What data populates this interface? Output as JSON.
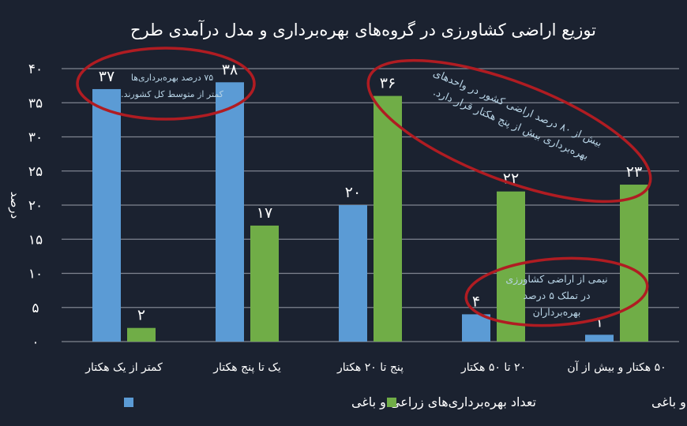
{
  "chart_data": {
    "type": "bar",
    "title": "توزیع اراضی کشاورزی در گروه‌های بهره‌برداری و مدل درآمدی طرح",
    "ylabel": "درصد",
    "xlabel": "",
    "ylim": [
      0,
      40
    ],
    "yticks": [
      0,
      5,
      10,
      15,
      20,
      25,
      30,
      35,
      40
    ],
    "ytick_labels": [
      "۰",
      "۵",
      "۱۰",
      "۱۵",
      "۲۰",
      "۲۵",
      "۳۰",
      "۳۵",
      "۴۰"
    ],
    "grid": true,
    "legend_position": "bottom",
    "categories": [
      "کمتر از یک هکتار",
      "یک تا پنج هکتار",
      "پنج تا ۲۰ هکتار",
      "۲۰ تا ۵۰ هکتار",
      "۵۰ هکتار و بیش از آن"
    ],
    "series": [
      {
        "name": "تعداد بهره‌برداری‌های زراعی و باغی",
        "color": "#5b9bd5",
        "values": [
          37,
          38,
          20,
          4,
          1
        ],
        "labels": [
          "۳۷",
          "۳۸",
          "۲۰",
          "۴",
          "۱"
        ]
      },
      {
        "name": "مساحت بهره‌برداری‌های زراعی و باغی",
        "color": "#70ad47",
        "values": [
          2,
          17,
          36,
          22,
          23
        ],
        "labels": [
          "۲",
          "۱۷",
          "۳۶",
          "۲۲",
          "۲۳"
        ]
      }
    ],
    "annotations": [
      {
        "lines": [
          "۷۵ درصد بهره‌برداری‌ها",
          "کمتر از متوسط کل کشورند."
        ]
      },
      {
        "lines": [
          "بیش از ۸۰ درصد اراضی کشور در واحدهای",
          "بهره‌برداری بیش از پنج هکتار قرار دارد."
        ]
      },
      {
        "lines": [
          "نیمی از اراضی کشاورزی",
          "در تملک ۵ درصد",
          "بهره‌برداران"
        ]
      }
    ],
    "annotation_color": "#b01c22"
  }
}
